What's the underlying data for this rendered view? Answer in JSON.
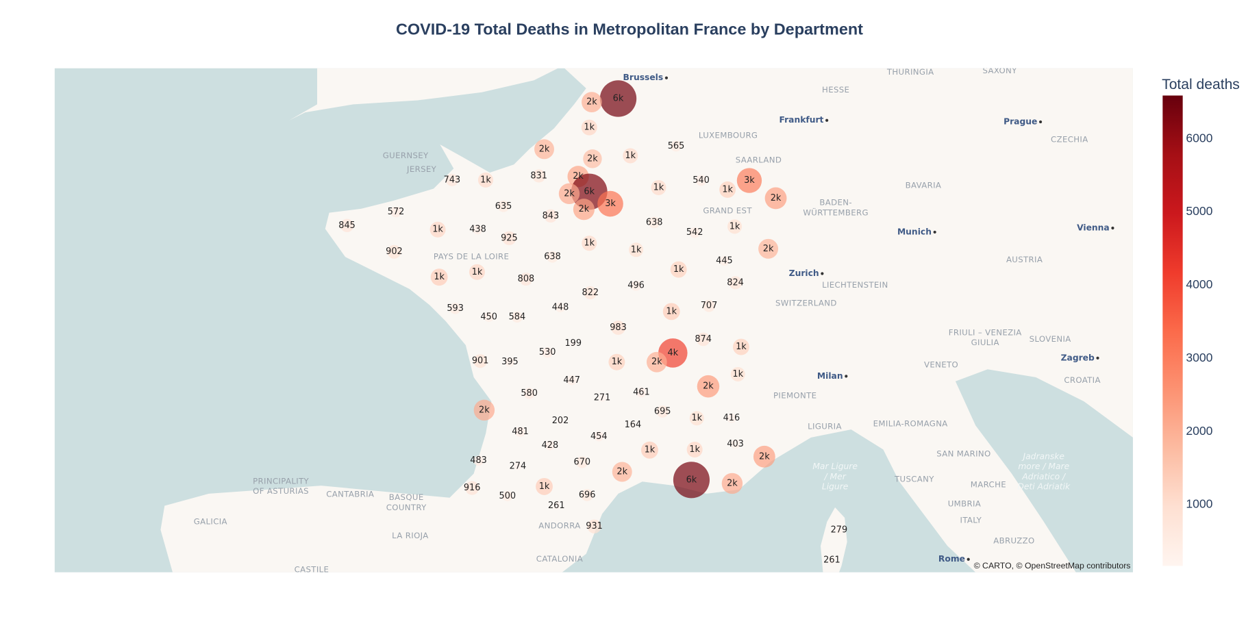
{
  "chart_data": {
    "type": "bubblemap",
    "title": "COVID-19 Total Deaths in Metropolitan France by Department",
    "colorbar_title": "Total deaths",
    "colorscale": [
      "rgb(255,245,240)",
      "rgb(254,224,210)",
      "rgb(252,187,161)",
      "rgb(252,146,114)",
      "rgb(251,106,74)",
      "rgb(239,59,44)",
      "rgb(203,24,29)",
      "rgb(165,15,21)",
      "rgb(103,0,13)"
    ],
    "zlim": [
      164,
      6592
    ],
    "zticks": [
      1000,
      2000,
      3000,
      4000,
      5000,
      6000
    ],
    "opacity": 0.7,
    "lon": [
      3.0,
      2.26,
      2.19,
      0.93,
      2.28,
      3.34,
      4.62,
      0.78,
      -1.65,
      -0.71,
      1.88,
      2.19,
      1.63,
      2.04,
      2.78,
      4.13,
      5.32,
      6.06,
      6.67,
      7.41,
      -0.21,
      -3.22,
      1.11,
      -4.59,
      -2.05,
      -0.93,
      -0.05,
      4.01,
      5.14,
      6.26,
      2.19,
      3.5,
      7.2,
      -3.27,
      1.16,
      4.69,
      5.97,
      -2.01,
      -0.95,
      0.42,
      3.5,
      6.28,
      2.22,
      1.38,
      -1.56,
      -0.62,
      0.17,
      4.49,
      5.54,
      3.0,
      5.38,
      1.74,
      1.02,
      6.44,
      4.53,
      -0.86,
      -0.03,
      2.96,
      4.08,
      1.7,
      6.35,
      5.52,
      0.51,
      2.55,
      3.65,
      -0.75,
      4.24,
      5.2,
      6.17,
      1.38,
      3.41,
      0.26,
      2.46,
      1.09,
      3.88,
      5.14,
      6.28,
      7.09,
      -0.91,
      0.19,
      1.99,
      3.11,
      5.05,
      6.19,
      -1.09,
      0.93,
      -0.1,
      2.13,
      1.27,
      2.33,
      9.18,
      8.98
    ],
    "lat": [
      50.44,
      50.37,
      49.87,
      49.44,
      49.25,
      49.31,
      49.5,
      48.91,
      48.83,
      48.83,
      48.9,
      48.6,
      48.56,
      48.25,
      48.36,
      48.68,
      48.82,
      48.64,
      48.82,
      48.47,
      48.31,
      48.2,
      48.12,
      47.93,
      47.85,
      47.85,
      47.68,
      47.99,
      47.79,
      47.91,
      47.58,
      47.45,
      47.47,
      47.41,
      47.31,
      47.06,
      47.23,
      46.91,
      47.01,
      46.87,
      46.74,
      46.8,
      46.6,
      46.31,
      46.29,
      46.12,
      46.12,
      46.23,
      46.34,
      45.91,
      45.68,
      45.6,
      45.42,
      45.53,
      45.41,
      45.25,
      45.23,
      45.23,
      45.23,
      44.87,
      44.99,
      44.75,
      44.61,
      44.52,
      44.63,
      44.28,
      44.25,
      44.12,
      44.12,
      44.07,
      43.99,
      43.85,
      43.76,
      43.58,
      43.49,
      43.5,
      43.61,
      43.36,
      43.28,
      43.17,
      43.25,
      43.06,
      42.9,
      42.83,
      42.74,
      42.77,
      42.58,
      42.6,
      42.39,
      41.98,
      41.91,
      41.31
    ],
    "values": [
      6450,
      2000,
      1200,
      1900,
      1700,
      1100,
      565,
      831,
      743,
      1100,
      2200,
      6300,
      2100,
      2200,
      3200,
      1100,
      540,
      1300,
      3000,
      2300,
      635,
      572,
      843,
      845,
      1200,
      438,
      925,
      638,
      542,
      1000,
      1100,
      1000,
      1900,
      902,
      638,
      1300,
      445,
      1400,
      1200,
      808,
      496,
      824,
      822,
      448,
      593,
      450,
      584,
      1400,
      707,
      983,
      874,
      199,
      530,
      1300,
      4100,
      901,
      395,
      1300,
      2000,
      447,
      1000,
      2400,
      580,
      271,
      461,
      2100,
      695,
      1000,
      416,
      202,
      164,
      481,
      454,
      428,
      1400,
      1200,
      403,
      2300,
      483,
      274,
      670,
      1900,
      6400,
      2100,
      916,
      1400,
      500,
      696,
      261,
      931,
      279,
      261
    ],
    "value_labels": [
      "6k",
      "2k",
      "1k",
      "2k",
      "2k",
      "1k",
      "565",
      "831",
      "743",
      "1k",
      "2k",
      "6k",
      "2k",
      "2k",
      "3k",
      "1k",
      "540",
      "1k",
      "3k",
      "2k",
      "635",
      "572",
      "843",
      "845",
      "1k",
      "438",
      "925",
      "638",
      "542",
      "1k",
      "1k",
      "1k",
      "2k",
      "902",
      "638",
      "1k",
      "445",
      "1k",
      "1k",
      "808",
      "496",
      "824",
      "822",
      "448",
      "593",
      "450",
      "584",
      "1k",
      "707",
      "983",
      "874",
      "199",
      "530",
      "1k",
      "4k",
      "901",
      "395",
      "1k",
      "2k",
      "447",
      "1k",
      "2k",
      "580",
      "271",
      "461",
      "2k",
      "695",
      "1k",
      "416",
      "202",
      "164",
      "481",
      "454",
      "428",
      "1k",
      "1k",
      "403",
      "2k",
      "483",
      "274",
      "670",
      "2k",
      "6k",
      "2k",
      "916",
      "1k",
      "500",
      "696",
      "261",
      "931",
      "279",
      "261"
    ],
    "map_labels": [
      {
        "lines": [
          "Brussels"
        ],
        "lon": 4.35,
        "lat": 50.85,
        "kind": "city"
      },
      {
        "lines": [
          "HESSE"
        ],
        "lon": 9.09,
        "lat": 50.61,
        "kind": "region"
      },
      {
        "lines": [
          "THURINGIA"
        ],
        "lon": 11.18,
        "lat": 50.96,
        "kind": "region"
      },
      {
        "lines": [
          "SAXONY"
        ],
        "lon": 13.68,
        "lat": 50.99,
        "kind": "region"
      },
      {
        "lines": [
          "Frankfurt"
        ],
        "lon": 8.84,
        "lat": 50.01,
        "kind": "city"
      },
      {
        "lines": [
          "Prague"
        ],
        "lon": 14.82,
        "lat": 49.98,
        "kind": "city"
      },
      {
        "lines": [
          "LUXEMBOURG"
        ],
        "lon": 6.08,
        "lat": 49.71,
        "kind": "region"
      },
      {
        "lines": [
          "CZECHIA"
        ],
        "lon": 15.63,
        "lat": 49.63,
        "kind": "region"
      },
      {
        "lines": [
          "SAARLAND"
        ],
        "lon": 6.93,
        "lat": 49.22,
        "kind": "region"
      },
      {
        "lines": [
          "GUERNSEY"
        ],
        "lon": -2.95,
        "lat": 49.31,
        "kind": "region"
      },
      {
        "lines": [
          "JERSEY"
        ],
        "lon": -2.5,
        "lat": 49.04,
        "kind": "region"
      },
      {
        "lines": [
          "BAVARIA"
        ],
        "lon": 11.54,
        "lat": 48.72,
        "kind": "region"
      },
      {
        "lines": [
          "BADEN-",
          "WÜRTTEMBERG"
        ],
        "lon": 9.09,
        "lat": 48.28,
        "kind": "region"
      },
      {
        "lines": [
          "GRAND EST"
        ],
        "lon": 6.06,
        "lat": 48.22,
        "kind": "region"
      },
      {
        "lines": [
          "Munich"
        ],
        "lon": 11.86,
        "lat": 47.8,
        "kind": "city"
      },
      {
        "lines": [
          "Vienna"
        ],
        "lon": 16.84,
        "lat": 47.88,
        "kind": "city"
      },
      {
        "lines": [
          "PAYS DE LA LOIRE"
        ],
        "lon": -1.11,
        "lat": 47.31,
        "kind": "region"
      },
      {
        "lines": [
          "AUSTRIA"
        ],
        "lon": 14.37,
        "lat": 47.25,
        "kind": "region"
      },
      {
        "lines": [
          "Zurich"
        ],
        "lon": 8.71,
        "lat": 46.98,
        "kind": "city"
      },
      {
        "lines": [
          "LIECHTENSTEIN"
        ],
        "lon": 9.63,
        "lat": 46.75,
        "kind": "region"
      },
      {
        "lines": [
          "SWITZERLAND"
        ],
        "lon": 8.26,
        "lat": 46.39,
        "kind": "region"
      },
      {
        "lines": [
          "FRIULI – VENEZIA",
          "GIULIA"
        ],
        "lon": 13.27,
        "lat": 45.71,
        "kind": "region"
      },
      {
        "lines": [
          "SLOVENIA"
        ],
        "lon": 15.09,
        "lat": 45.68,
        "kind": "region"
      },
      {
        "lines": [
          "Zagreb"
        ],
        "lon": 16.42,
        "lat": 45.31,
        "kind": "city"
      },
      {
        "lines": [
          "VENETO"
        ],
        "lon": 12.04,
        "lat": 45.17,
        "kind": "region"
      },
      {
        "lines": [
          "Milan"
        ],
        "lon": 9.38,
        "lat": 44.95,
        "kind": "city"
      },
      {
        "lines": [
          "CROATIA"
        ],
        "lon": 15.99,
        "lat": 44.87,
        "kind": "region"
      },
      {
        "lines": [
          "PIEMONTE"
        ],
        "lon": 7.95,
        "lat": 44.56,
        "kind": "region"
      },
      {
        "lines": [
          "EMILIA-ROMAGNA"
        ],
        "lon": 11.18,
        "lat": 44.01,
        "kind": "region"
      },
      {
        "lines": [
          "LIGURIA"
        ],
        "lon": 8.78,
        "lat": 43.95,
        "kind": "region"
      },
      {
        "lines": [
          "SAN MARINO"
        ],
        "lon": 12.67,
        "lat": 43.41,
        "kind": "region"
      },
      {
        "lines": [
          "Mar Ligure",
          "/ Mer",
          "Ligure"
        ],
        "lon": 9.07,
        "lat": 42.96,
        "kind": "sea"
      },
      {
        "lines": [
          "TUSCANY"
        ],
        "lon": 11.29,
        "lat": 42.91,
        "kind": "region"
      },
      {
        "lines": [
          "PRINCIPALITY",
          "OF ASTURIAS"
        ],
        "lon": -6.44,
        "lat": 42.77,
        "kind": "region"
      },
      {
        "lines": [
          "CANTABRIA"
        ],
        "lon": -4.5,
        "lat": 42.61,
        "kind": "region"
      },
      {
        "lines": [
          "BASQUE",
          "COUNTRY"
        ],
        "lon": -2.93,
        "lat": 42.45,
        "kind": "region"
      },
      {
        "lines": [
          "MARCHE"
        ],
        "lon": 13.36,
        "lat": 42.8,
        "kind": "region"
      },
      {
        "lines": [
          "UMBRIA"
        ],
        "lon": 12.69,
        "lat": 42.42,
        "kind": "region"
      },
      {
        "lines": [
          "GALICIA"
        ],
        "lon": -8.41,
        "lat": 42.07,
        "kind": "region"
      },
      {
        "lines": [
          "ANDORRA"
        ],
        "lon": 1.36,
        "lat": 41.99,
        "kind": "region"
      },
      {
        "lines": [
          "ITALY"
        ],
        "lon": 12.87,
        "lat": 42.1,
        "kind": "region"
      },
      {
        "lines": [
          "LA RIOJA"
        ],
        "lon": -2.82,
        "lat": 41.79,
        "kind": "region"
      },
      {
        "lines": [
          "ABRUZZO"
        ],
        "lon": 14.08,
        "lat": 41.69,
        "kind": "region"
      },
      {
        "lines": [
          "CATALONIA"
        ],
        "lon": 1.36,
        "lat": 41.33,
        "kind": "region"
      },
      {
        "lines": [
          "Rome"
        ],
        "lon": 12.8,
        "lat": 41.33,
        "kind": "city"
      },
      {
        "lines": [
          "CASTILE"
        ],
        "lon": -5.58,
        "lat": 41.12,
        "kind": "region"
      },
      {
        "lines": [
          "Jadranske",
          "more / Mare",
          "Adriatico /",
          "Deti Adriatik"
        ],
        "lon": 14.91,
        "lat": 43.06,
        "kind": "sea"
      }
    ],
    "attribution": "© CARTO, © OpenStreetMap contributors"
  }
}
